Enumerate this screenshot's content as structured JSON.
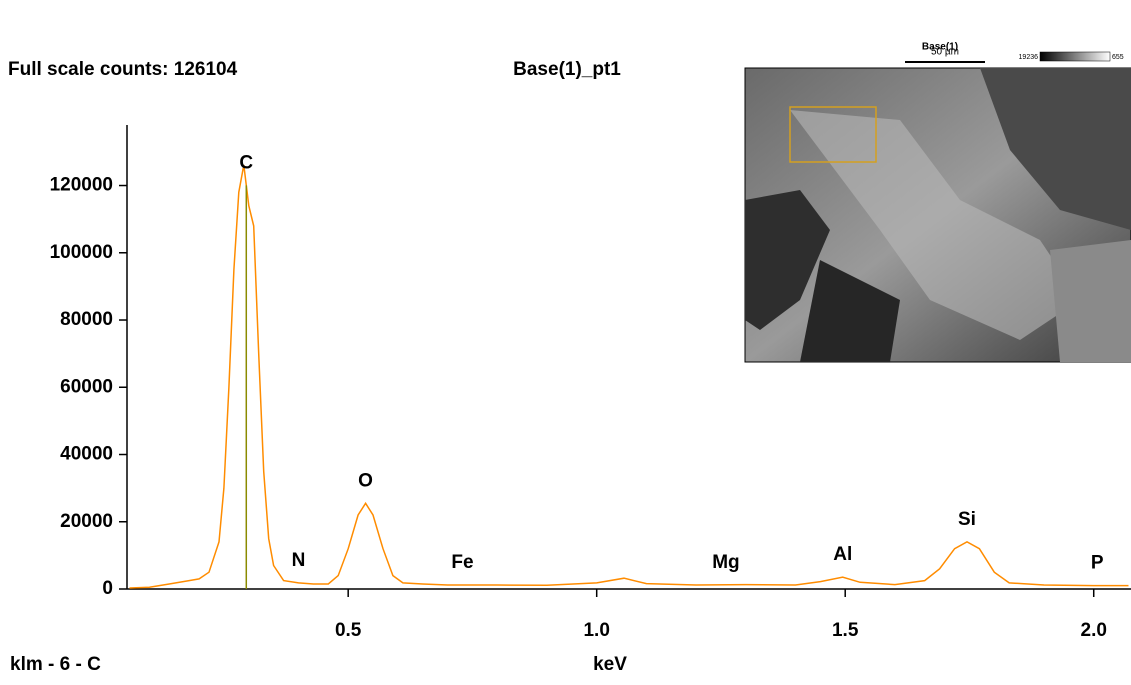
{
  "chart_data": {
    "type": "line",
    "title": "Base(1)_pt1",
    "subtitle": "Full scale counts: 126104",
    "xlabel": "keV",
    "footnote": "klm - 6 - C",
    "color": "#ff8c00",
    "x": [
      0.06,
      0.1,
      0.14,
      0.18,
      0.2,
      0.22,
      0.24,
      0.25,
      0.26,
      0.27,
      0.28,
      0.29,
      0.3,
      0.31,
      0.32,
      0.33,
      0.34,
      0.35,
      0.37,
      0.4,
      0.43,
      0.46,
      0.48,
      0.5,
      0.52,
      0.535,
      0.55,
      0.57,
      0.59,
      0.61,
      0.65,
      0.7,
      0.8,
      0.9,
      1.0,
      1.055,
      1.1,
      1.2,
      1.3,
      1.4,
      1.45,
      1.495,
      1.53,
      1.6,
      1.66,
      1.69,
      1.72,
      1.745,
      1.77,
      1.8,
      1.83,
      1.9,
      2.0,
      2.07
    ],
    "values": [
      300,
      500,
      1500,
      2500,
      3000,
      5000,
      14000,
      30000,
      60000,
      95000,
      118000,
      126104,
      114000,
      108000,
      70000,
      35000,
      15000,
      7000,
      2500,
      1800,
      1500,
      1500,
      4000,
      12000,
      22000,
      25500,
      22000,
      12000,
      4000,
      1800,
      1500,
      1200,
      1200,
      1100,
      1800,
      3200,
      1600,
      1200,
      1300,
      1200,
      2200,
      3500,
      2000,
      1300,
      2500,
      6000,
      12000,
      14000,
      12000,
      5000,
      1800,
      1200,
      1000,
      1000
    ],
    "xlim": [
      0.055,
      2.075
    ],
    "ylim": [
      0,
      138000
    ],
    "xticks": [
      0.5,
      {
        "value": 1,
        "label": "1.0"
      },
      1.5,
      {
        "value": 2,
        "label": "2.0"
      }
    ],
    "yticks": [
      0,
      20000,
      40000,
      60000,
      80000,
      100000,
      120000
    ],
    "peaks": [
      {
        "label": "C",
        "x": 0.295
      },
      {
        "label": "N",
        "x": 0.4
      },
      {
        "label": "O",
        "x": 0.535
      },
      {
        "label": "Fe",
        "x": 0.73
      },
      {
        "label": "Mg",
        "x": 1.26
      },
      {
        "label": "Al",
        "x": 1.495
      },
      {
        "label": "Si",
        "x": 1.745
      },
      {
        "label": "P",
        "x": 2.007
      }
    ],
    "marker": {
      "x": 0.295,
      "color": "#8b8b00"
    }
  },
  "inset": {
    "title": "Base(1)",
    "scale_bar": "50 µm",
    "gray_min": "19236",
    "gray_max": "655"
  }
}
